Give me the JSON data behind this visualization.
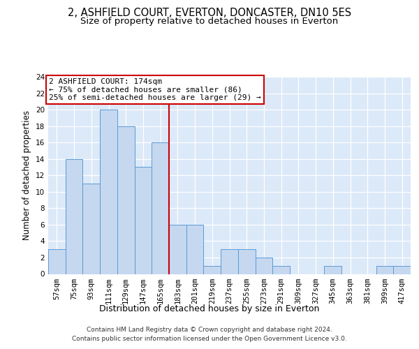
{
  "title1": "2, ASHFIELD COURT, EVERTON, DONCASTER, DN10 5ES",
  "title2": "Size of property relative to detached houses in Everton",
  "xlabel": "Distribution of detached houses by size in Everton",
  "ylabel": "Number of detached properties",
  "categories": [
    "57sqm",
    "75sqm",
    "93sqm",
    "111sqm",
    "129sqm",
    "147sqm",
    "165sqm",
    "183sqm",
    "201sqm",
    "219sqm",
    "237sqm",
    "255sqm",
    "273sqm",
    "291sqm",
    "309sqm",
    "327sqm",
    "345sqm",
    "363sqm",
    "381sqm",
    "399sqm",
    "417sqm"
  ],
  "values": [
    3,
    14,
    11,
    20,
    18,
    13,
    16,
    6,
    6,
    1,
    3,
    3,
    2,
    1,
    0,
    0,
    1,
    0,
    0,
    1,
    1
  ],
  "bar_color": "#c5d8f0",
  "bar_edge_color": "#5b9bd5",
  "vline_x": 6.5,
  "vline_color": "#cc0000",
  "annotation_line1": "2 ASHFIELD COURT: 174sqm",
  "annotation_line2": "← 75% of detached houses are smaller (86)",
  "annotation_line3": "25% of semi-detached houses are larger (29) →",
  "annotation_box_facecolor": "#ffffff",
  "annotation_box_edgecolor": "#cc0000",
  "ylim": [
    0,
    24
  ],
  "yticks": [
    0,
    2,
    4,
    6,
    8,
    10,
    12,
    14,
    16,
    18,
    20,
    22,
    24
  ],
  "footer1": "Contains HM Land Registry data © Crown copyright and database right 2024.",
  "footer2": "Contains public sector information licensed under the Open Government Licence v3.0.",
  "bg_color": "#dce9f8",
  "fig_bg": "#ffffff",
  "title1_fontsize": 10.5,
  "title2_fontsize": 9.5,
  "tick_fontsize": 7.5,
  "ylabel_fontsize": 8.5,
  "xlabel_fontsize": 9,
  "ann_fontsize": 8,
  "footer_fontsize": 6.5
}
